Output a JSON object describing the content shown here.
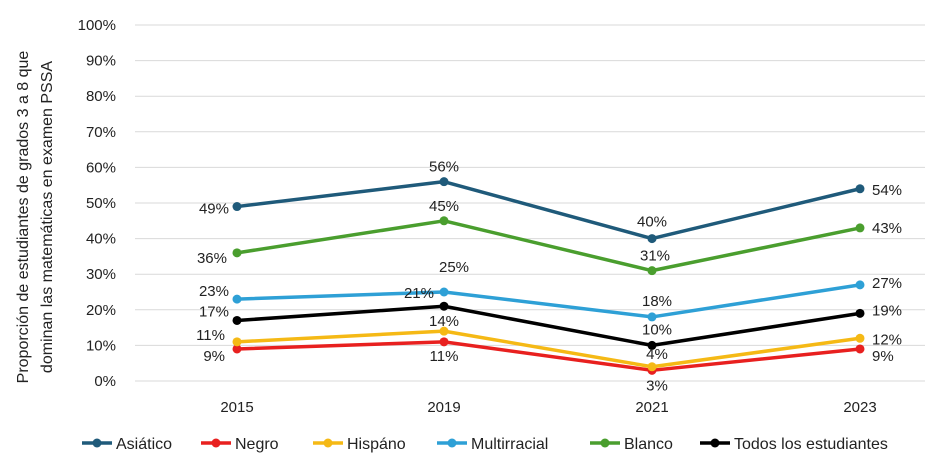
{
  "chart_data": {
    "type": "line",
    "title": "",
    "xlabel": "",
    "ylabel": "Proporción de estudiantes de grados 3 a 8 que dominan las matemáticas en examen PSSA",
    "ylabel_lines": [
      "Proporción de estudiantes de grados 3 a 8 que",
      "dominan las matemáticas en examen PSSA"
    ],
    "categories": [
      "2015",
      "2019",
      "2021",
      "2023"
    ],
    "ylim": [
      0,
      100
    ],
    "y_ticks": [
      "0%",
      "10%",
      "20%",
      "30%",
      "40%",
      "50%",
      "60%",
      "70%",
      "80%",
      "90%",
      "100%"
    ],
    "grid": true,
    "legend_position": "bottom",
    "series": [
      {
        "name": "Asiático",
        "color": "#1f5a7a",
        "values": [
          49,
          56,
          40,
          54
        ],
        "labels": [
          "49%",
          "56%",
          "40%",
          "54%"
        ]
      },
      {
        "name": "Negro",
        "color": "#e8201f",
        "values": [
          9,
          11,
          3,
          9
        ],
        "labels": [
          "9%",
          "11%",
          "3%",
          "9%"
        ]
      },
      {
        "name": "Hispáno",
        "color": "#f5b915",
        "values": [
          11,
          14,
          4,
          12
        ],
        "labels": [
          "11%",
          "14%",
          "4%",
          "12%"
        ]
      },
      {
        "name": "Multirracial",
        "color": "#2ea0d6",
        "values": [
          23,
          25,
          18,
          27
        ],
        "labels": [
          "23%",
          "25%",
          "18%",
          "27%"
        ]
      },
      {
        "name": "Blanco",
        "color": "#4a9e2e",
        "values": [
          36,
          45,
          31,
          43
        ],
        "labels": [
          "36%",
          "45%",
          "31%",
          "43%"
        ]
      },
      {
        "name": "Todos los estudiantes",
        "color": "#000000",
        "values": [
          17,
          21,
          10,
          19
        ],
        "labels": [
          "17%",
          "21%",
          "10%",
          "19%"
        ]
      }
    ]
  }
}
